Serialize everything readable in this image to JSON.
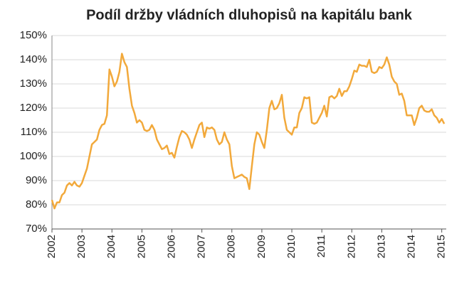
{
  "chart_data": {
    "type": "line",
    "title": "Podíl držby vládních dluhopisů na kapitálu bank",
    "x": [
      2002.0,
      2002.083,
      2002.167,
      2002.25,
      2002.333,
      2002.417,
      2002.5,
      2002.583,
      2002.667,
      2002.75,
      2002.833,
      2002.917,
      2003.0,
      2003.083,
      2003.167,
      2003.25,
      2003.333,
      2003.417,
      2003.5,
      2003.583,
      2003.667,
      2003.75,
      2003.833,
      2003.917,
      2004.0,
      2004.083,
      2004.167,
      2004.25,
      2004.333,
      2004.417,
      2004.5,
      2004.583,
      2004.667,
      2004.75,
      2004.833,
      2004.917,
      2005.0,
      2005.083,
      2005.167,
      2005.25,
      2005.333,
      2005.417,
      2005.5,
      2005.583,
      2005.667,
      2005.75,
      2005.833,
      2005.917,
      2006.0,
      2006.083,
      2006.167,
      2006.25,
      2006.333,
      2006.417,
      2006.5,
      2006.583,
      2006.667,
      2006.75,
      2006.833,
      2006.917,
      2007.0,
      2007.083,
      2007.167,
      2007.25,
      2007.333,
      2007.417,
      2007.5,
      2007.583,
      2007.667,
      2007.75,
      2007.833,
      2007.917,
      2008.0,
      2008.083,
      2008.167,
      2008.25,
      2008.333,
      2008.417,
      2008.5,
      2008.583,
      2008.667,
      2008.75,
      2008.833,
      2008.917,
      2009.0,
      2009.083,
      2009.167,
      2009.25,
      2009.333,
      2009.417,
      2009.5,
      2009.583,
      2009.667,
      2009.75,
      2009.833,
      2009.917,
      2010.0,
      2010.083,
      2010.167,
      2010.25,
      2010.333,
      2010.417,
      2010.5,
      2010.583,
      2010.667,
      2010.75,
      2010.833,
      2010.917,
      2011.0,
      2011.083,
      2011.167,
      2011.25,
      2011.333,
      2011.417,
      2011.5,
      2011.583,
      2011.667,
      2011.75,
      2011.833,
      2011.917,
      2012.0,
      2012.083,
      2012.167,
      2012.25,
      2012.333,
      2012.417,
      2012.5,
      2012.583,
      2012.667,
      2012.75,
      2012.833,
      2012.917,
      2013.0,
      2013.083,
      2013.167,
      2013.25,
      2013.333,
      2013.417,
      2013.5,
      2013.583,
      2013.667,
      2013.75,
      2013.833,
      2013.917,
      2014.0,
      2014.083,
      2014.167,
      2014.25,
      2014.333,
      2014.417,
      2014.5,
      2014.583,
      2014.667,
      2014.75,
      2014.833,
      2014.917,
      2015.0,
      2015.083
    ],
    "series": [
      {
        "color": "#f2a93b",
        "values": [
          82,
          78.5,
          81,
          81,
          84,
          85,
          88,
          89,
          88,
          89.5,
          88,
          87.5,
          89,
          92,
          95,
          100,
          105,
          106,
          107,
          111,
          113,
          113.5,
          117,
          136,
          133,
          129,
          131,
          135,
          142.5,
          139,
          137,
          128,
          121,
          118,
          114,
          115,
          114,
          111,
          110.5,
          111,
          113,
          111,
          107,
          105,
          103,
          103.5,
          104.5,
          101,
          101.5,
          99.5,
          104,
          108,
          110.5,
          110,
          109,
          107,
          103.5,
          107,
          110,
          113,
          114,
          108,
          112,
          111.5,
          112,
          111,
          107,
          105,
          106,
          110,
          107,
          105,
          96,
          91,
          91.5,
          92,
          92.5,
          91.5,
          91,
          86.5,
          96,
          105,
          110,
          109,
          106,
          103.5,
          111,
          120,
          123,
          119.5,
          120,
          122,
          125.5,
          116,
          111,
          110,
          109,
          112,
          112,
          118,
          120,
          124.5,
          124,
          124.5,
          114,
          113.5,
          114,
          116,
          118,
          121,
          116.5,
          124.5,
          125,
          124,
          125,
          128,
          125,
          127,
          127,
          129,
          132,
          135.5,
          135,
          138,
          137.5,
          137.5,
          137,
          140,
          135,
          134.5,
          135,
          137,
          136.5,
          138,
          141,
          138,
          133,
          131,
          130,
          125.5,
          126,
          123,
          117,
          117,
          117,
          113,
          116,
          120,
          121,
          119,
          118.5,
          118.5,
          119.5,
          117,
          116,
          114,
          115.5,
          113.5
        ]
      }
    ],
    "xlim": [
      2002,
      2015.15
    ],
    "xticks": [
      2002,
      2003,
      2004,
      2005,
      2006,
      2007,
      2008,
      2009,
      2010,
      2011,
      2012,
      2013,
      2014,
      2015
    ],
    "ylim": [
      70,
      150
    ],
    "yticks": [
      {
        "value": 70,
        "label": "70%"
      },
      {
        "value": 80,
        "label": "80%"
      },
      {
        "value": 90,
        "label": "90%"
      },
      {
        "value": 100,
        "label": "100%"
      },
      {
        "value": 110,
        "label": "110%"
      },
      {
        "value": 120,
        "label": "120%"
      },
      {
        "value": 130,
        "label": "130%"
      },
      {
        "value": 140,
        "label": "140%"
      },
      {
        "value": 150,
        "label": "150%"
      }
    ],
    "grid": true
  }
}
